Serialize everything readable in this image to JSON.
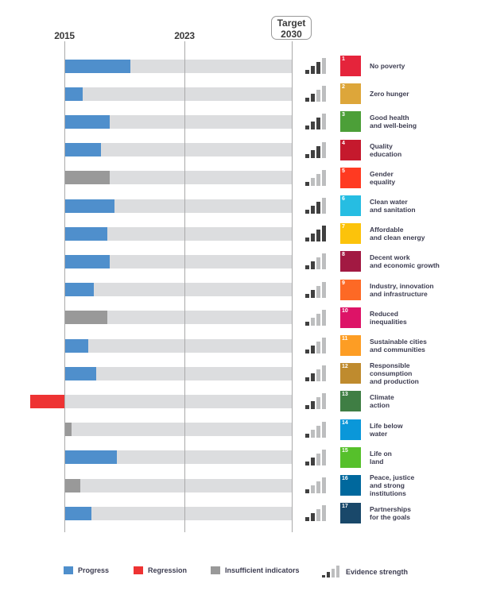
{
  "chart_data": {
    "type": "bar",
    "title": "",
    "axis": {
      "start_label": "2015",
      "mid_label": "2023",
      "target_label": "Target\n2030",
      "xlim": [
        -15,
        100
      ],
      "unit": "% progress toward 2030 target"
    },
    "categories": [
      "No poverty",
      "Zero hunger",
      "Good health\nand well-being",
      "Quality\neducation",
      "Gender\nequality",
      "Clean water\nand sanitation",
      "Affordable\nand clean energy",
      "Decent work\nand economic growth",
      "Industry, innovation\nand infrastructure",
      "Reduced\ninequalities",
      "Sustainable cities\nand communities",
      "Responsible\nconsumption\nand production",
      "Climate\naction",
      "Life below\nwater",
      "Life on\nland",
      "Peace, justice\nand strong\ninstitutions",
      "Partnerships\nfor the goals"
    ],
    "goal_numbers": [
      "1",
      "2",
      "3",
      "4",
      "5",
      "6",
      "7",
      "8",
      "9",
      "10",
      "11",
      "12",
      "13",
      "14",
      "15",
      "16",
      "17"
    ],
    "goal_colors": [
      "#e5243b",
      "#dda63a",
      "#4c9f38",
      "#c5192d",
      "#ff3a21",
      "#26bde2",
      "#fcc30b",
      "#a21942",
      "#fd6925",
      "#dd1367",
      "#fd9d24",
      "#bf8b2e",
      "#3f7e44",
      "#0a97d9",
      "#56c02b",
      "#00689d",
      "#19486a"
    ],
    "values": [
      29,
      8,
      20,
      16,
      20,
      22,
      19,
      20,
      13,
      19,
      10.5,
      14,
      -15,
      3,
      23,
      7,
      12
    ],
    "status": [
      "progress",
      "progress",
      "progress",
      "progress",
      "insufficient",
      "progress",
      "progress",
      "progress",
      "progress",
      "insufficient",
      "progress",
      "progress",
      "regression",
      "insufficient",
      "progress",
      "insufficient",
      "progress"
    ],
    "evidence_strength": [
      3,
      2,
      3,
      3,
      1,
      3,
      4,
      2,
      2,
      1,
      2,
      2,
      2,
      1,
      2,
      1,
      2
    ],
    "evidence_max": 4,
    "legend": [
      {
        "key": "progress",
        "label": "Progress",
        "color": "#4f8fcc"
      },
      {
        "key": "regression",
        "label": "Regression",
        "color": "#ee3333"
      },
      {
        "key": "insufficient",
        "label": "Insufficient indicators",
        "color": "#999999"
      },
      {
        "key": "evidence",
        "label": "Evidence strength",
        "color": "#404040"
      }
    ],
    "legend_position": "bottom"
  }
}
